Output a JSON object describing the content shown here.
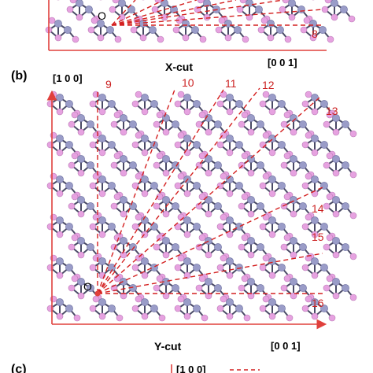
{
  "panel_a": {
    "origin": "O",
    "direction_labels": [
      "8"
    ],
    "cut": "X-cut",
    "axis_right": "[0 0 1]"
  },
  "panel_b": {
    "label": "(b)",
    "axis_up": "[1 0 0]",
    "axis_right": "[0 0 1]",
    "origin": "O",
    "cut": "Y-cut",
    "direction_labels": [
      "9",
      "10",
      "11",
      "12",
      "13",
      "14",
      "15",
      "16"
    ]
  },
  "panel_c": {
    "label": "(c)",
    "axis_up": "[1 0 0]"
  },
  "colors": {
    "axis": "#e0403c",
    "dash": "#d42020",
    "atom_large": "#9a9cc8",
    "atom_small": "#e6a2e0",
    "bond": "#4a4a66"
  }
}
